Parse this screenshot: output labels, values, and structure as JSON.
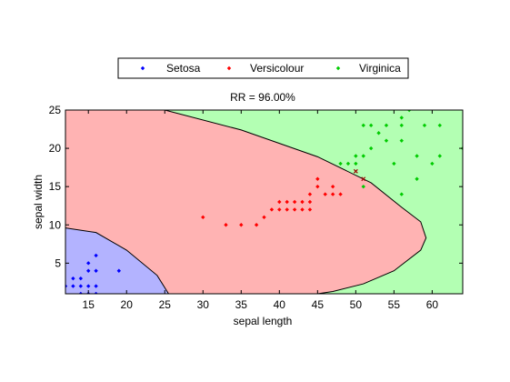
{
  "chart_data": {
    "type": "scatter",
    "title": "RR = 96.00%",
    "xlabel": "sepal length",
    "ylabel": "sepal width",
    "xlim": [
      12,
      64
    ],
    "ylim": [
      1,
      25
    ],
    "xticks": [
      15,
      20,
      25,
      30,
      35,
      40,
      45,
      50,
      55,
      60
    ],
    "yticks": [
      5,
      10,
      15,
      20,
      25
    ],
    "legend_position": "top",
    "grid": false,
    "series": [
      {
        "name": "Setosa",
        "color": "#0000ff",
        "region_color": "#b3b3ff",
        "marker": "diamond",
        "x": [
          12,
          13,
          13,
          14,
          14,
          14,
          15,
          15,
          15,
          15,
          16,
          16,
          16,
          16,
          19
        ],
        "y": [
          2,
          2,
          3,
          1,
          2,
          3,
          1,
          2,
          4,
          5,
          1,
          2,
          4,
          6,
          4
        ]
      },
      {
        "name": "Versicolour",
        "color": "#ff0000",
        "region_color": "#ffb3b3",
        "marker": "diamond",
        "x": [
          30,
          33,
          35,
          37,
          38,
          39,
          40,
          40,
          41,
          41,
          42,
          42,
          43,
          43,
          44,
          44,
          44,
          45,
          45,
          46,
          47,
          47,
          48
        ],
        "y": [
          11,
          10,
          10,
          10,
          11,
          12,
          12,
          13,
          12,
          13,
          12,
          13,
          12,
          13,
          12,
          13,
          14,
          15,
          16,
          14,
          14,
          15,
          14
        ]
      },
      {
        "name": "Virginica",
        "color": "#00cc00",
        "region_color": "#b3ffb3",
        "marker": "diamond",
        "x": [
          48,
          49,
          50,
          50,
          51,
          51,
          51,
          52,
          52,
          53,
          54,
          54,
          55,
          56,
          56,
          56,
          56,
          57,
          58,
          58,
          59,
          60,
          61,
          61,
          64
        ],
        "y": [
          18,
          18,
          19,
          18,
          23,
          19,
          15,
          20,
          23,
          22,
          21,
          23,
          18,
          14,
          21,
          23,
          24,
          25,
          16,
          19,
          23,
          18,
          19,
          23,
          20
        ]
      }
    ],
    "misclassified": {
      "color": "#990000",
      "marker": "x",
      "x": [
        50,
        51
      ],
      "y": [
        17,
        16
      ]
    },
    "decision_boundaries": {
      "setosa_region": {
        "x": [
          12,
          16,
          20,
          24,
          25.5,
          25.5
        ],
        "y": [
          9.6,
          9,
          6.7,
          3.4,
          1,
          1
        ]
      },
      "virginica_region_top": {
        "x": [
          25,
          35,
          45,
          52,
          56,
          58.5,
          59.2
        ],
        "y": [
          25,
          22.4,
          18.9,
          15.5,
          12.3,
          10.4,
          8.3
        ]
      },
      "virginica_region_bottom": {
        "x": [
          59.2,
          58.5,
          55,
          51,
          47,
          45
        ],
        "y": [
          8.3,
          6.7,
          4,
          2.3,
          1.3,
          1
        ]
      }
    }
  }
}
